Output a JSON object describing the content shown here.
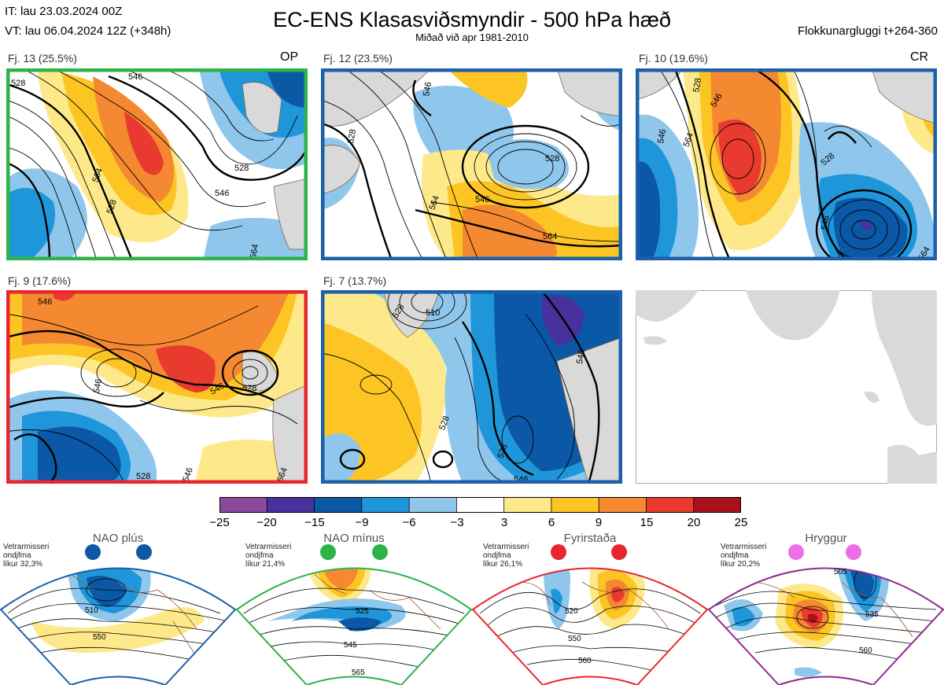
{
  "header": {
    "it": "IT: lau 23.03.2024 00Z",
    "vt": "VT: lau 06.04.2024 12Z  (+348h)",
    "title": "EC-ENS Klasasviðsmyndir - 500 hPa hæð",
    "subtitle": "Miðað við apr 1981-2010",
    "window": "Flokkunargluggi t+264-360"
  },
  "colors": {
    "green": "#2db34a",
    "blue": "#1d5fa8",
    "red": "#e8262d",
    "purple": "#8e2b8e",
    "land": "#d9d9d9",
    "coast": "#7a5a3a"
  },
  "panels": [
    {
      "label": "Fj. 13 (25.5%)",
      "tag": "OP",
      "frame": "green",
      "contours": [
        "528",
        "546",
        "564",
        "528",
        "546",
        "528",
        "564"
      ]
    },
    {
      "label": "Fj. 12 (23.5%)",
      "tag": "",
      "frame": "blue",
      "contours": [
        "546",
        "528",
        "564",
        "546",
        "564",
        "528"
      ]
    },
    {
      "label": "Fj. 10 (19.6%)",
      "tag": "CR",
      "frame": "blue",
      "contours": [
        "546",
        "564",
        "546",
        "528",
        "546",
        "564",
        "528"
      ]
    },
    {
      "label": "Fj. 9 (17.6%)",
      "tag": "",
      "frame": "red",
      "contours": [
        "546",
        "546",
        "546",
        "528",
        "546",
        "564",
        "528"
      ]
    },
    {
      "label": "Fj. 7 (13.7%)",
      "tag": "",
      "frame": "blue",
      "contours": [
        "510",
        "528",
        "528",
        "546",
        "528",
        "546"
      ]
    }
  ],
  "colorbar": {
    "ticks": [
      "−25",
      "−20",
      "−15",
      "−9",
      "−6",
      "−3",
      "3",
      "6",
      "9",
      "15",
      "20",
      "25"
    ],
    "colors": [
      "#8b4a9e",
      "#47319c",
      "#0a58a6",
      "#1f96d9",
      "#8fc6ec",
      "#ffffff",
      "#fde98a",
      "#fcc524",
      "#f48931",
      "#e83a2f",
      "#a8111b"
    ]
  },
  "regimes": [
    {
      "name": "NAO plús",
      "stats": [
        "Vetrarmisseri",
        "ondjfma",
        "líkur 32,3%"
      ],
      "dot": "#0f58a5",
      "frame": "#1d5fa8",
      "labels": [
        "510",
        "550"
      ]
    },
    {
      "name": "NAO mínus",
      "stats": [
        "Vetrarmisseri",
        "ondjfma",
        "líkur 21,4%"
      ],
      "dot": "#2db34a",
      "frame": "#2db34a",
      "labels": [
        "525",
        "545",
        "565"
      ]
    },
    {
      "name": "Fyrirstaða",
      "stats": [
        "Vetrarmisseri",
        "ondjfma",
        "líkur 26,1%"
      ],
      "dot": "#e8262d",
      "frame": "#e8262d",
      "labels": [
        "520",
        "550",
        "560"
      ]
    },
    {
      "name": "Hryggur",
      "stats": [
        "Vetrarmisseri",
        "ondjfma",
        "líkur 20,2%"
      ],
      "dot": "#ee6ee6",
      "frame": "#8e2b8e",
      "labels": [
        "505",
        "535",
        "560"
      ]
    }
  ]
}
